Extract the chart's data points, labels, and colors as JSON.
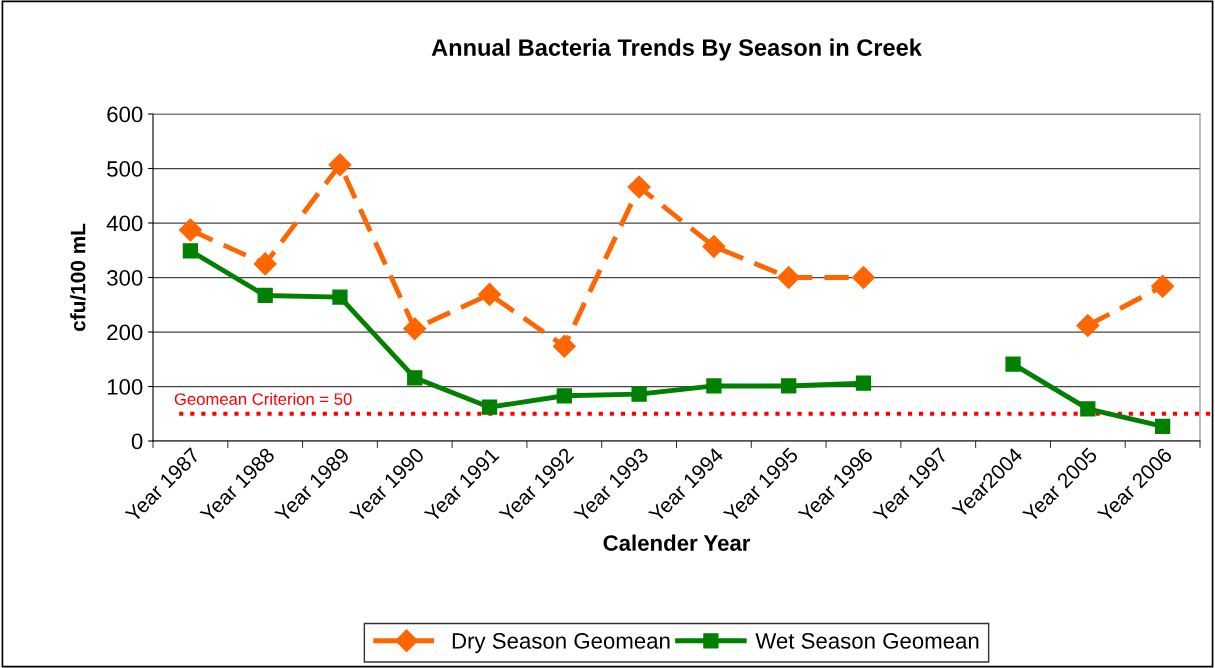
{
  "chart_data": {
    "type": "line",
    "title": "Annual Bacteria Trends By Season in Creek",
    "xlabel": "Calender Year",
    "ylabel": "cfu/100 mL",
    "categories": [
      "Year 1987",
      "Year 1988",
      "Year 1989",
      "Year 1990",
      "Year 1991",
      "Year 1992",
      "Year 1993",
      "Year 1994",
      "Year 1995",
      "Year 1996",
      "Year 1997",
      "Year2004",
      "Year 2005",
      "Year 2006"
    ],
    "series": [
      {
        "name": "Dry Season Geomean",
        "color": "#ff6600",
        "marker": "diamond",
        "line_style": "dashed",
        "values": [
          387,
          325,
          507,
          206,
          269,
          174,
          466,
          357,
          300,
          300,
          null,
          null,
          212,
          284
        ]
      },
      {
        "name": "Wet Season Geomean",
        "color": "#008000",
        "marker": "square",
        "line_style": "solid",
        "values": [
          349,
          267,
          264,
          116,
          62,
          83,
          86,
          101,
          101,
          106,
          null,
          141,
          59,
          27
        ]
      }
    ],
    "ylim": [
      0,
      600
    ],
    "yticks": [
      0,
      100,
      200,
      300,
      400,
      500,
      600
    ],
    "grid": "y",
    "legend": "bottom",
    "ref_lines": [
      {
        "axis": "y",
        "value": 50,
        "label": "Geomean Criterion = 50",
        "color": "#ff0000",
        "line_style": "dotted"
      }
    ]
  }
}
